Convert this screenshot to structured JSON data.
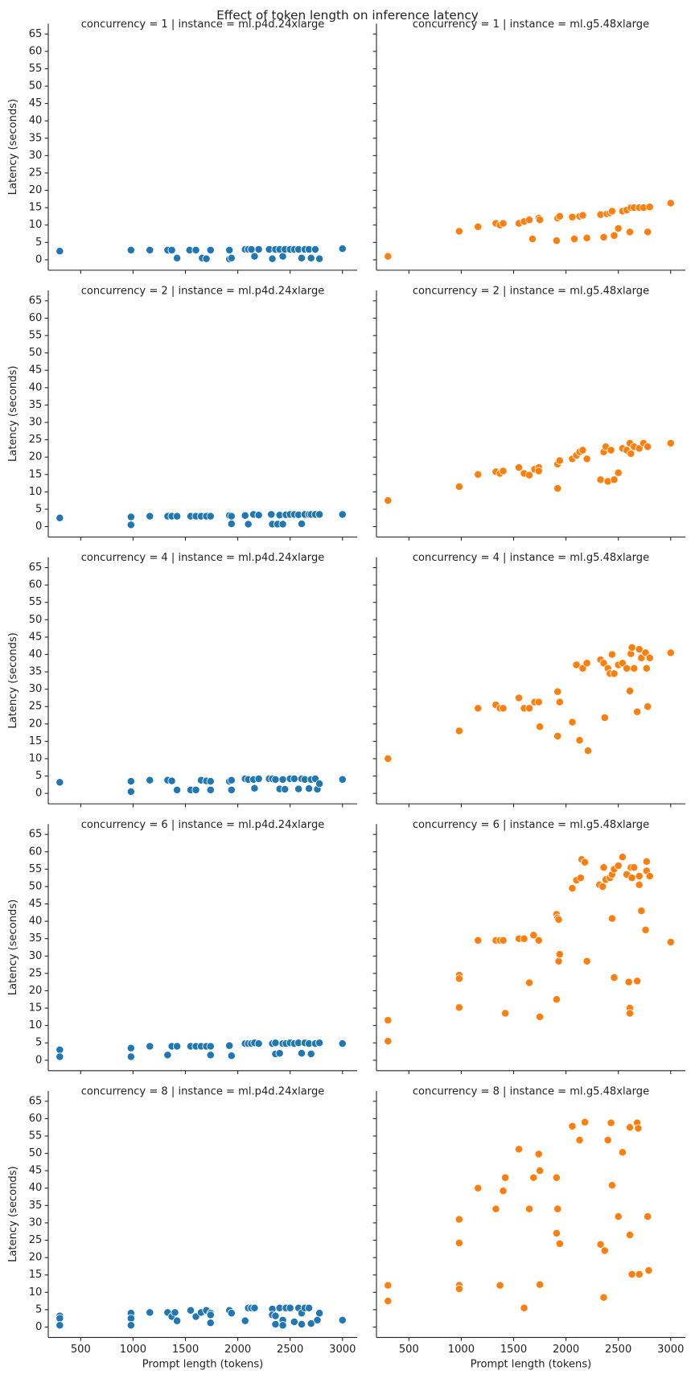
{
  "title": "Effect of token length on inference latency",
  "chart_data": [
    {
      "type": "scatter",
      "title": "concurrency = 1 | instance = ml.p4d.24xlarge",
      "color": "#1f77b4",
      "x": [
        300,
        980,
        1160,
        1330,
        1370,
        1420,
        1540,
        1600,
        1660,
        1700,
        1740,
        1920,
        1920,
        1940,
        2070,
        2100,
        2130,
        2160,
        2200,
        2300,
        2330,
        2360,
        2400,
        2430,
        2450,
        2500,
        2540,
        2580,
        2610,
        2640,
        2680,
        2700,
        2740,
        2780,
        3000
      ],
      "values": [
        2.5,
        2.8,
        2.8,
        2.8,
        2.8,
        0.5,
        2.8,
        2.8,
        0.5,
        0.3,
        2.8,
        2.8,
        0.2,
        0.5,
        3,
        3,
        3,
        1,
        3,
        3,
        0.3,
        3,
        3,
        1,
        3,
        3,
        3,
        3,
        0.5,
        3,
        3,
        0.5,
        3,
        0.3,
        3.2
      ],
      "xlim": [
        190,
        3140
      ],
      "ylim": [
        -3,
        68
      ],
      "xticks": [
        500,
        1000,
        1500,
        2000,
        2500,
        3000
      ],
      "yticks": [
        0,
        5,
        10,
        15,
        20,
        25,
        30,
        35,
        40,
        45,
        50,
        55,
        60,
        65
      ],
      "show_xticklabels": false,
      "show_yticklabels": true,
      "y_label": "Latency (seconds)"
    },
    {
      "type": "scatter",
      "title": "concurrency = 1 | instance = ml.g5.48xlarge",
      "color": "#ff7f0e",
      "x": [
        300,
        980,
        1160,
        1330,
        1370,
        1400,
        1550,
        1600,
        1650,
        1680,
        1740,
        1750,
        1910,
        1920,
        1940,
        2060,
        2080,
        2130,
        2160,
        2200,
        2330,
        2360,
        2390,
        2420,
        2440,
        2460,
        2500,
        2540,
        2580,
        2610,
        2620,
        2650,
        2700,
        2740,
        2780,
        2800,
        3000
      ],
      "values": [
        1,
        8.2,
        9.5,
        10.5,
        10,
        10.5,
        10.5,
        11,
        11.5,
        6,
        12,
        11.5,
        5.5,
        12,
        12.5,
        12.3,
        6,
        12.5,
        12.8,
        6.3,
        13,
        6.5,
        13.2,
        13.5,
        14,
        7,
        9,
        14,
        14.3,
        8,
        15,
        15,
        15,
        15,
        8,
        15.2,
        16.3
      ],
      "xlim": [
        190,
        3140
      ],
      "ylim": [
        -3,
        68
      ],
      "xticks": [
        500,
        1000,
        1500,
        2000,
        2500,
        3000
      ],
      "yticks": [
        0,
        5,
        10,
        15,
        20,
        25,
        30,
        35,
        40,
        45,
        50,
        55,
        60,
        65
      ],
      "show_xticklabels": false,
      "show_yticklabels": false
    },
    {
      "type": "scatter",
      "title": "concurrency = 2 | instance = ml.p4d.24xlarge",
      "color": "#1f77b4",
      "x": [
        300,
        980,
        980,
        1160,
        1330,
        1370,
        1420,
        1550,
        1600,
        1650,
        1700,
        1740,
        1920,
        1940,
        1940,
        2070,
        2100,
        2150,
        2200,
        2320,
        2330,
        2380,
        2400,
        2430,
        2460,
        2500,
        2540,
        2580,
        2610,
        2640,
        2680,
        2700,
        2740,
        2780,
        3000
      ],
      "values": [
        2.5,
        2.8,
        0.5,
        3,
        3,
        3,
        3,
        3,
        3,
        3,
        3,
        3,
        3.2,
        0.8,
        3,
        3.2,
        0.7,
        3.5,
        3.3,
        3.5,
        0.7,
        0.7,
        3.3,
        0.7,
        3.4,
        3.5,
        3.5,
        3.4,
        0.8,
        3.5,
        3.5,
        3.5,
        3.5,
        3.5,
        3.5
      ],
      "xlim": [
        190,
        3140
      ],
      "ylim": [
        -3,
        68
      ],
      "xticks": [
        500,
        1000,
        1500,
        2000,
        2500,
        3000
      ],
      "yticks": [
        0,
        5,
        10,
        15,
        20,
        25,
        30,
        35,
        40,
        45,
        50,
        55,
        60,
        65
      ],
      "show_xticklabels": false,
      "show_yticklabels": true,
      "y_label": "Latency (seconds)"
    },
    {
      "type": "scatter",
      "title": "concurrency = 2 | instance = ml.g5.48xlarge",
      "color": "#ff7f0e",
      "x": [
        300,
        980,
        1160,
        1330,
        1370,
        1400,
        1550,
        1600,
        1650,
        1700,
        1740,
        1740,
        1920,
        1920,
        1940,
        2060,
        2100,
        2130,
        2160,
        2200,
        2330,
        2360,
        2380,
        2400,
        2430,
        2460,
        2500,
        2540,
        2580,
        2610,
        2620,
        2650,
        2700,
        2740,
        2780,
        3000
      ],
      "values": [
        7.5,
        11.5,
        15,
        15.8,
        15.3,
        16,
        17,
        15.3,
        14.8,
        16.5,
        17,
        16,
        18,
        11,
        19,
        19.5,
        20.5,
        21.5,
        22,
        19.5,
        13.5,
        21.5,
        23,
        13,
        22,
        13.5,
        15.5,
        22.5,
        22,
        24,
        21,
        23,
        22.5,
        24,
        23,
        24
      ],
      "xlim": [
        190,
        3140
      ],
      "ylim": [
        -3,
        68
      ],
      "xticks": [
        500,
        1000,
        1500,
        2000,
        2500,
        3000
      ],
      "yticks": [
        0,
        5,
        10,
        15,
        20,
        25,
        30,
        35,
        40,
        45,
        50,
        55,
        60,
        65
      ],
      "show_xticklabels": false,
      "show_yticklabels": false
    },
    {
      "type": "scatter",
      "title": "concurrency = 4 | instance = ml.p4d.24xlarge",
      "color": "#1f77b4",
      "x": [
        300,
        980,
        980,
        1160,
        1330,
        1370,
        1420,
        1550,
        1600,
        1650,
        1700,
        1740,
        1740,
        1920,
        1940,
        1940,
        2070,
        2100,
        2150,
        2160,
        2200,
        2300,
        2330,
        2360,
        2400,
        2430,
        2450,
        2500,
        2540,
        2580,
        2610,
        2640,
        2680,
        2700,
        2740,
        2760,
        2780,
        3000
      ],
      "values": [
        3.2,
        3.5,
        0.5,
        3.8,
        3.8,
        3.6,
        1,
        1,
        1,
        3.8,
        3.6,
        3.5,
        1,
        3.5,
        1,
        3.8,
        4.2,
        4,
        4,
        1.5,
        4.2,
        4.2,
        4.2,
        4,
        1.3,
        4,
        1.2,
        4.2,
        4.2,
        1.3,
        4.2,
        4,
        1.4,
        4,
        4.2,
        1.2,
        2.8,
        4
      ],
      "xlim": [
        190,
        3140
      ],
      "ylim": [
        -3,
        68
      ],
      "xticks": [
        500,
        1000,
        1500,
        2000,
        2500,
        3000
      ],
      "yticks": [
        0,
        5,
        10,
        15,
        20,
        25,
        30,
        35,
        40,
        45,
        50,
        55,
        60,
        65
      ],
      "show_xticklabels": false,
      "show_yticklabels": true,
      "y_label": "Latency (seconds)"
    },
    {
      "type": "scatter",
      "title": "concurrency = 4 | instance = ml.g5.48xlarge",
      "color": "#ff7f0e",
      "x": [
        300,
        980,
        1160,
        1330,
        1370,
        1400,
        1550,
        1600,
        1650,
        1700,
        1740,
        1750,
        1920,
        1920,
        1940,
        2060,
        2100,
        2130,
        2160,
        2200,
        2210,
        2330,
        2360,
        2370,
        2400,
        2420,
        2440,
        2460,
        2500,
        2540,
        2580,
        2610,
        2620,
        2630,
        2650,
        2680,
        2700,
        2720,
        2760,
        2770,
        2780,
        2800,
        3000
      ],
      "values": [
        10,
        18,
        24.5,
        25.5,
        24.5,
        24.5,
        27.5,
        24.5,
        24.5,
        26.3,
        26.3,
        19.2,
        29.3,
        16.5,
        26.3,
        20.5,
        37,
        15.3,
        36,
        37.5,
        12.3,
        38.5,
        37.5,
        21.8,
        36,
        34.5,
        40,
        34.5,
        37,
        37.5,
        36,
        29.5,
        40.2,
        42,
        36,
        23.5,
        41.5,
        39,
        40.5,
        36,
        25,
        39,
        40.5
      ],
      "xlim": [
        190,
        3140
      ],
      "ylim": [
        -3,
        68
      ],
      "xticks": [
        500,
        1000,
        1500,
        2000,
        2500,
        3000
      ],
      "yticks": [
        0,
        5,
        10,
        15,
        20,
        25,
        30,
        35,
        40,
        45,
        50,
        55,
        60,
        65
      ],
      "show_xticklabels": false,
      "show_yticklabels": false
    },
    {
      "type": "scatter",
      "title": "concurrency = 6 | instance = ml.p4d.24xlarge",
      "color": "#1f77b4",
      "x": [
        300,
        300,
        980,
        980,
        1160,
        1330,
        1370,
        1420,
        1550,
        1600,
        1650,
        1700,
        1740,
        1740,
        1920,
        1940,
        2070,
        2100,
        2130,
        2160,
        2200,
        2330,
        2360,
        2360,
        2400,
        2430,
        2460,
        2500,
        2540,
        2580,
        2610,
        2640,
        2680,
        2700,
        2740,
        2780,
        3000
      ],
      "values": [
        3,
        1,
        3.5,
        1,
        4,
        1.5,
        4,
        4,
        4,
        4,
        4,
        4,
        4,
        1.5,
        4.2,
        1.3,
        4.8,
        4.8,
        4.8,
        5,
        4.8,
        4.8,
        5,
        1.8,
        2,
        4.8,
        4.8,
        5,
        4.8,
        5,
        2,
        5,
        4.8,
        1.8,
        4.8,
        5,
        4.8
      ],
      "xlim": [
        190,
        3140
      ],
      "ylim": [
        -3,
        68
      ],
      "xticks": [
        500,
        1000,
        1500,
        2000,
        2500,
        3000
      ],
      "yticks": [
        0,
        5,
        10,
        15,
        20,
        25,
        30,
        35,
        40,
        45,
        50,
        55,
        60,
        65
      ],
      "show_xticklabels": false,
      "show_yticklabels": true,
      "y_label": "Latency (seconds)"
    },
    {
      "type": "scatter",
      "title": "concurrency = 6 | instance = ml.g5.48xlarge",
      "color": "#ff7f0e",
      "x": [
        300,
        300,
        980,
        980,
        980,
        1160,
        1330,
        1370,
        1400,
        1420,
        1550,
        1600,
        1650,
        1690,
        1740,
        1750,
        1910,
        1910,
        1920,
        1930,
        1930,
        1940,
        2060,
        2100,
        2140,
        2150,
        2180,
        2200,
        2320,
        2350,
        2360,
        2380,
        2420,
        2440,
        2440,
        2460,
        2460,
        2500,
        2540,
        2580,
        2600,
        2610,
        2610,
        2620,
        2630,
        2650,
        2680,
        2700,
        2700,
        2720,
        2760,
        2770,
        2770,
        2800,
        3000
      ],
      "values": [
        11.5,
        5.5,
        24.5,
        23.5,
        15.2,
        34.5,
        34.5,
        34.5,
        34.5,
        13.5,
        35,
        35,
        22.3,
        36,
        34.5,
        12.5,
        42,
        17.5,
        41,
        40.5,
        28.5,
        30.5,
        49.5,
        51.8,
        52.5,
        57.8,
        57,
        28.5,
        50.5,
        50,
        55.5,
        52,
        52.5,
        53.5,
        40.8,
        23.8,
        55,
        56,
        58.5,
        53.5,
        22.5,
        15,
        13.5,
        55.5,
        52.5,
        55.5,
        22.8,
        50.5,
        53,
        43,
        37.5,
        57.2,
        54.5,
        53,
        34
      ],
      "xlim": [
        190,
        3140
      ],
      "ylim": [
        -3,
        68
      ],
      "xticks": [
        500,
        1000,
        1500,
        2000,
        2500,
        3000
      ],
      "yticks": [
        0,
        5,
        10,
        15,
        20,
        25,
        30,
        35,
        40,
        45,
        50,
        55,
        60,
        65
      ],
      "show_xticklabels": false,
      "show_yticklabels": false
    },
    {
      "type": "scatter",
      "title": "concurrency = 8 | instance = ml.p4d.24xlarge",
      "color": "#1f77b4",
      "x": [
        300,
        300,
        300,
        980,
        980,
        980,
        1160,
        1330,
        1370,
        1400,
        1420,
        1550,
        1600,
        1650,
        1700,
        1740,
        1740,
        1740,
        1920,
        1940,
        2070,
        2100,
        2130,
        2160,
        2330,
        2330,
        2360,
        2360,
        2400,
        2430,
        2430,
        2460,
        2500,
        2540,
        2580,
        2610,
        2610,
        2640,
        2680,
        2700,
        2760,
        2780,
        3000
      ],
      "values": [
        3.2,
        2.5,
        0.5,
        4,
        2.5,
        0.5,
        4.2,
        4.2,
        3,
        4.2,
        1.8,
        4.8,
        3,
        4.2,
        4.8,
        4,
        3.5,
        1.2,
        4.8,
        4,
        1.8,
        5.5,
        5.5,
        5.5,
        5.2,
        3.5,
        0.8,
        3.2,
        5.5,
        2,
        0.5,
        5.5,
        5.5,
        1.5,
        5.5,
        4,
        0.8,
        5.5,
        5.5,
        1,
        2,
        4,
        2
      ],
      "xlim": [
        190,
        3140
      ],
      "ylim": [
        -3,
        68
      ],
      "xticks": [
        500,
        1000,
        1500,
        2000,
        2500,
        3000
      ],
      "yticks": [
        0,
        5,
        10,
        15,
        20,
        25,
        30,
        35,
        40,
        45,
        50,
        55,
        60,
        65
      ],
      "show_xticklabels": true,
      "show_yticklabels": true,
      "x_label": "Prompt length (tokens)",
      "y_label": "Latency (seconds)"
    },
    {
      "type": "scatter",
      "title": "concurrency = 8 | instance = ml.g5.48xlarge",
      "color": "#ff7f0e",
      "x": [
        300,
        300,
        980,
        980,
        980,
        980,
        1160,
        1330,
        1370,
        1400,
        1420,
        1550,
        1600,
        1650,
        1690,
        1740,
        1750,
        1750,
        1910,
        1910,
        1920,
        1940,
        2060,
        2130,
        2180,
        2330,
        2360,
        2370,
        2400,
        2430,
        2440,
        2500,
        2540,
        2610,
        2610,
        2630,
        2680,
        2690,
        2700,
        2780,
        2790
      ],
      "values": [
        12,
        7.5,
        31,
        24.2,
        12,
        11,
        40,
        34,
        12,
        39.2,
        43,
        51.2,
        5.5,
        34,
        43,
        49.8,
        45,
        12.2,
        43,
        27,
        34,
        24,
        57.8,
        53.8,
        59,
        23.8,
        8.5,
        22,
        53.8,
        58.8,
        40.8,
        31.8,
        50.3,
        57.5,
        26.5,
        15.2,
        58.8,
        57.2,
        15.2,
        31.8,
        16.3
      ],
      "xlim": [
        190,
        3140
      ],
      "ylim": [
        -3,
        68
      ],
      "xticks": [
        500,
        1000,
        1500,
        2000,
        2500,
        3000
      ],
      "yticks": [
        0,
        5,
        10,
        15,
        20,
        25,
        30,
        35,
        40,
        45,
        50,
        55,
        60,
        65
      ],
      "show_xticklabels": true,
      "show_yticklabels": false,
      "x_label": "Prompt length (tokens)"
    }
  ]
}
